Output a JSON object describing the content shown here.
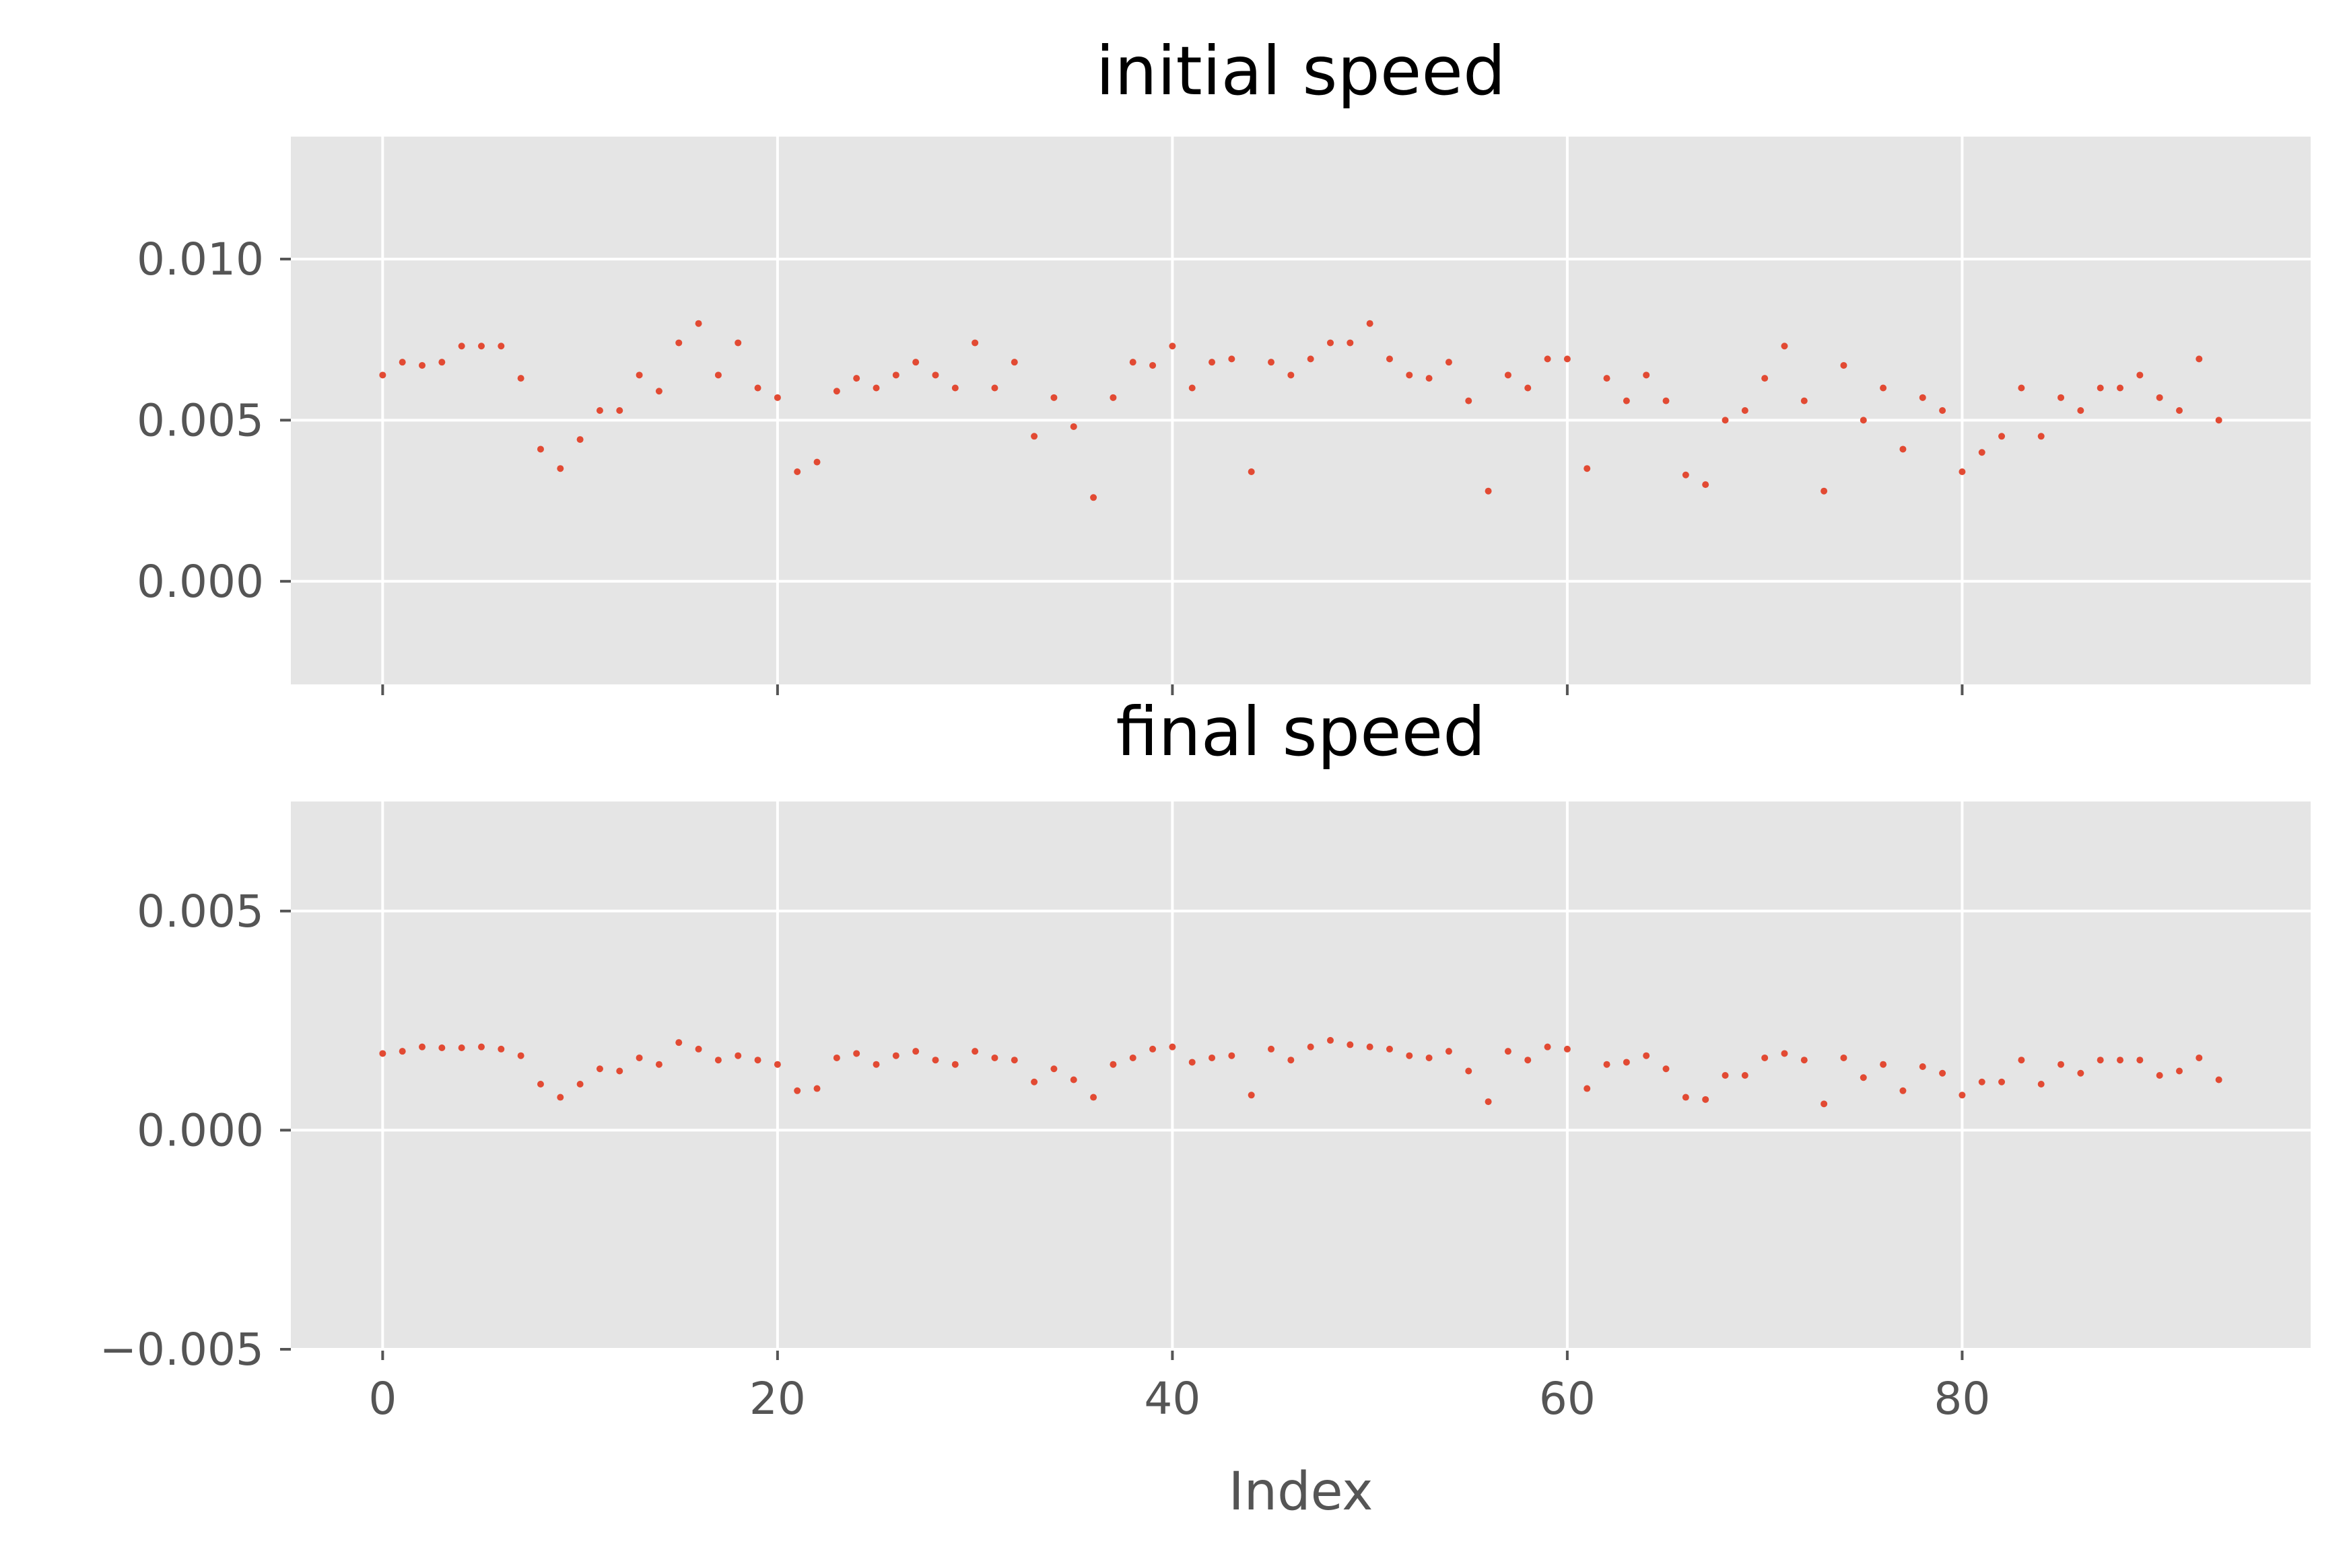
{
  "chart_data": [
    {
      "type": "scatter",
      "title": "initial speed",
      "xlabel": "",
      "ylabel": "",
      "xlim": [
        -4.65,
        97.65
      ],
      "ylim": [
        -0.0032,
        0.0138
      ],
      "xticks": [
        0,
        20,
        40,
        60,
        80
      ],
      "xtick_labels": [
        "",
        "",
        "",
        "",
        ""
      ],
      "yticks": [
        0.0,
        0.005,
        0.01
      ],
      "ytick_labels": [
        "0.000",
        "0.005",
        "0.010"
      ],
      "grid": true,
      "marker_color": "#E24A33",
      "background": "#E5E5E5",
      "series": [
        {
          "x": [
            0,
            1,
            2,
            3,
            4,
            5,
            6,
            7,
            8,
            9,
            10,
            11,
            12,
            13,
            14,
            15,
            16,
            17,
            18,
            19,
            20,
            21,
            22,
            23,
            24,
            25,
            26,
            27,
            28,
            29,
            30,
            31,
            32,
            33,
            34,
            35,
            36,
            37,
            38,
            39,
            40,
            41,
            42,
            43,
            44,
            45,
            46,
            47,
            48,
            49,
            50,
            51,
            52,
            53,
            54,
            55,
            56,
            57,
            58,
            59,
            60,
            61,
            62,
            63,
            64,
            65,
            66,
            67,
            68,
            69,
            70,
            71,
            72,
            73,
            74,
            75,
            76,
            77,
            78,
            79,
            80,
            81,
            82,
            83,
            84,
            85,
            86,
            87,
            88,
            89,
            90,
            91,
            92,
            93
          ],
          "y": [
            0.0064,
            0.0068,
            0.0067,
            0.0068,
            0.0073,
            0.0073,
            0.0073,
            0.0063,
            0.0041,
            0.0035,
            0.0044,
            0.0053,
            0.0053,
            0.0064,
            0.0059,
            0.0074,
            0.008,
            0.0064,
            0.0074,
            0.006,
            0.0057,
            0.0034,
            0.0037,
            0.0059,
            0.0063,
            0.006,
            0.0064,
            0.0068,
            0.0064,
            0.006,
            0.0074,
            0.006,
            0.0068,
            0.0045,
            0.0057,
            0.0048,
            0.0026,
            0.0057,
            0.0068,
            0.0067,
            0.0073,
            0.006,
            0.0068,
            0.0069,
            0.0034,
            0.0068,
            0.0064,
            0.0069,
            0.0074,
            0.0074,
            0.008,
            0.0069,
            0.0064,
            0.0063,
            0.0068,
            0.0056,
            0.0028,
            0.0064,
            0.006,
            0.0069,
            0.0069,
            0.0035,
            0.0063,
            0.0056,
            0.0064,
            0.0056,
            0.0033,
            0.003,
            0.005,
            0.0053,
            0.0063,
            0.0073,
            0.0056,
            0.0028,
            0.0067,
            0.005,
            0.006,
            0.0041,
            0.0057,
            0.0053,
            0.0034,
            0.004,
            0.0045,
            0.006,
            0.0045,
            0.0057,
            0.0053,
            0.006,
            0.006,
            0.0064,
            0.0057,
            0.0053,
            0.0069,
            0.005
          ]
        }
      ]
    },
    {
      "type": "scatter",
      "title": "final speed",
      "xlabel": "Index",
      "ylabel": "",
      "xlim": [
        -4.65,
        97.65
      ],
      "ylim": [
        -0.005,
        0.0075
      ],
      "xticks": [
        0,
        20,
        40,
        60,
        80
      ],
      "xtick_labels": [
        "0",
        "20",
        "40",
        "60",
        "80"
      ],
      "yticks": [
        -0.005,
        0.0,
        0.005
      ],
      "ytick_labels": [
        "−0.005",
        "0.000",
        "0.005"
      ],
      "grid": true,
      "marker_color": "#E24A33",
      "background": "#E5E5E5",
      "series": [
        {
          "x": [
            0,
            1,
            2,
            3,
            4,
            5,
            6,
            7,
            8,
            9,
            10,
            11,
            12,
            13,
            14,
            15,
            16,
            17,
            18,
            19,
            20,
            21,
            22,
            23,
            24,
            25,
            26,
            27,
            28,
            29,
            30,
            31,
            32,
            33,
            34,
            35,
            36,
            37,
            38,
            39,
            40,
            41,
            42,
            43,
            44,
            45,
            46,
            47,
            48,
            49,
            50,
            51,
            52,
            53,
            54,
            55,
            56,
            57,
            58,
            59,
            60,
            61,
            62,
            63,
            64,
            65,
            66,
            67,
            68,
            69,
            70,
            71,
            72,
            73,
            74,
            75,
            76,
            77,
            78,
            79,
            80,
            81,
            82,
            83,
            84,
            85,
            86,
            87,
            88,
            89,
            90,
            91,
            92,
            93
          ],
          "y": [
            0.00175,
            0.0018,
            0.0019,
            0.00188,
            0.00188,
            0.0019,
            0.00185,
            0.0017,
            0.00105,
            0.00075,
            0.00105,
            0.0014,
            0.00135,
            0.00165,
            0.0015,
            0.002,
            0.00185,
            0.0016,
            0.0017,
            0.0016,
            0.0015,
            0.0009,
            0.00095,
            0.00165,
            0.00175,
            0.0015,
            0.0017,
            0.0018,
            0.0016,
            0.0015,
            0.0018,
            0.00165,
            0.0016,
            0.0011,
            0.0014,
            0.00115,
            0.00075,
            0.0015,
            0.00165,
            0.00185,
            0.0019,
            0.00155,
            0.00165,
            0.0017,
            0.0008,
            0.00185,
            0.0016,
            0.0019,
            0.00205,
            0.00195,
            0.0019,
            0.00185,
            0.0017,
            0.00165,
            0.0018,
            0.00135,
            0.00065,
            0.0018,
            0.0016,
            0.0019,
            0.00185,
            0.00095,
            0.0015,
            0.00155,
            0.0017,
            0.0014,
            0.00075,
            0.0007,
            0.00125,
            0.00125,
            0.00165,
            0.00175,
            0.0016,
            0.0006,
            0.00165,
            0.0012,
            0.0015,
            0.0009,
            0.00145,
            0.0013,
            0.0008,
            0.0011,
            0.0011,
            0.0016,
            0.00105,
            0.0015,
            0.0013,
            0.0016,
            0.0016,
            0.0016,
            0.00125,
            0.00135,
            0.00165,
            0.00115
          ]
        }
      ]
    }
  ]
}
